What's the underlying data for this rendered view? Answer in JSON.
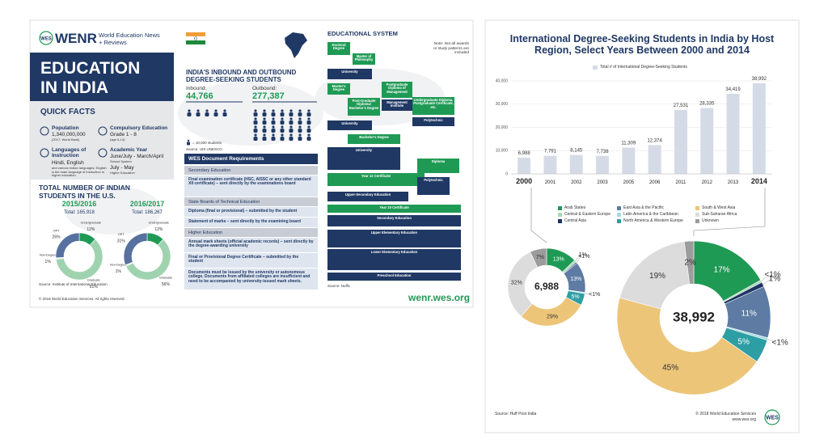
{
  "header": {
    "logo": "WES",
    "brand": "WENR",
    "tagline": "World Education News + Reviews"
  },
  "title_lines": [
    "EDUCATION",
    "IN INDIA"
  ],
  "quick_facts": {
    "heading": "QUICK FACTS",
    "items": [
      {
        "label": "Population",
        "value": "1,340,000,000",
        "note": "(2017, World Bank)"
      },
      {
        "label": "Compulsory Education",
        "value": "Grade 1 - 8",
        "note": "(age 6-14)"
      },
      {
        "label": "Languages of Instruction",
        "value": "Hindi, English",
        "note": "and various Indian languages; English is the main language of instruction in higher education"
      },
      {
        "label": "Academic Year",
        "value": "June/July - March/April",
        "note": "School System",
        "value2": "July - May",
        "note2": "Higher Education"
      }
    ]
  },
  "students_us": {
    "heading": "TOTAL NUMBER OF INDIAN STUDENTS IN THE U.S.",
    "source": "Source: Institute of International Education"
  },
  "inbound_outbound": {
    "title": "INDIA'S INBOUND AND OUTBOUND DEGREE-SEEKING STUDENTS"
  },
  "documents": {
    "heading": "WES Document Requirements",
    "sections": [
      {
        "heading": "Secondary Education",
        "items": [
          "Final examination certificate (HSC, AISSC or any other standard XII certificate) – sent directly by the examinations board"
        ]
      },
      {
        "heading": "State Boards of Technical Education",
        "items": [
          "Diploma (final or provisional) – submitted by the student",
          "Statement of marks – sent directly by the examining board"
        ]
      },
      {
        "heading": "Higher Education",
        "items": [
          "Annual mark sheets (official academic records) – sent directly by the degree-awarding university",
          "Final or Provisional Degree Certificate – submitted by the student",
          "Documents must be issued by the university or autonomous college. Documents from affiliated colleges are insufficient and need to be accompanied by university-issued mark sheets."
        ]
      }
    ]
  },
  "edu_system": {
    "heading": "EDUCATIONAL SYSTEM",
    "note": "Note: Not all awards or study patterns are included",
    "nodes": [
      "Doctoral Degree",
      "Master of Philosophy",
      "University",
      "Master's Degree",
      "Post-Graduate Diploma/ Bachelor's Degree",
      "Postgraduate Diploma of Management",
      "Management Institute",
      "Undergraduate Diploma, Postgraduate Certificate, etc.",
      "University",
      "Polytechnic",
      "Bachelor's Degree",
      "University",
      "Diploma",
      "Year 12 Certificate",
      "Upper-Secondary Education",
      "Polytechnic",
      "Year 10 Certificate",
      "Secondary Education",
      "Upper Elementary Education",
      "Lower Elementary Education",
      "Preschool Education"
    ],
    "source": "Source: Nuffic"
  },
  "footer_left": {
    "copyright": "© 2018 World Education Services. All rights reserved.",
    "url": "wenr.wes.org"
  },
  "right_legend": {
    "categories": [
      "Arab States",
      "Central & Eastern Europe",
      "Central Asia",
      "East Asia & the Pacific",
      "Latin America & the Caribbean",
      "North America & Western Europe",
      "South & West Asia",
      "Sub-Saharan Africa",
      "Unknown"
    ],
    "colors": [
      "#1f9a55",
      "#a9d8b6",
      "#1d3563",
      "#5d7ba3",
      "#a6dbe0",
      "#2d9fa4",
      "#ecc579",
      "#dcdcdc",
      "#9c9c9c"
    ]
  },
  "footer_right": {
    "source": "Source: Huff Post India",
    "copyright": "© 2018 World Education Services",
    "url": "www.wes.org",
    "logo": "WES"
  },
  "chart_data": [
    {
      "type": "bar",
      "title": "International Degree-Seeking Students in India by Host Region, Select Years Between 2000 and 2014",
      "categories": [
        "2000",
        "2001",
        "2002",
        "2003",
        "2005",
        "2006",
        "2011",
        "2012",
        "2013",
        "2014"
      ],
      "series": [
        {
          "name": "Total # of International Degree-Seeking Students",
          "color": "#d5dbe6",
          "values": [
            6988,
            7791,
            8145,
            7738,
            11309,
            12374,
            27531,
            28335,
            34419,
            38992
          ],
          "value_labels": [
            "6,988",
            "7,791",
            "8,145",
            "7,738",
            "11,309",
            "12,374",
            "27,531",
            "28,335",
            "34,419",
            "38,992"
          ]
        }
      ],
      "ylim": [
        0,
        40000
      ],
      "yticks": [
        0,
        {
          "value": 10000,
          "label": "10,000"
        },
        {
          "value": 20000,
          "label": "20,000"
        },
        {
          "value": 30000,
          "label": "30,000"
        },
        {
          "value": 40000,
          "label": "40,000"
        }
      ],
      "grid": true
    },
    {
      "type": "donut",
      "total_label": "6,988",
      "values": [
        13,
        1,
        0.5,
        13,
        0.5,
        5,
        29,
        32,
        7
      ],
      "value_labels": [
        "13%",
        "1%",
        "<1%",
        "13%",
        "<1%",
        "5%",
        "29%",
        "32%",
        "7%"
      ]
    },
    {
      "type": "donut",
      "total_label": "38,992",
      "values": [
        17,
        0.5,
        1,
        11,
        0.5,
        5,
        45,
        19,
        2
      ],
      "value_labels": [
        "17%",
        "<1%",
        "1%",
        "11%",
        "<1%",
        "5%",
        "45%",
        "19%",
        "2%"
      ]
    },
    {
      "type": "donut",
      "title": "2015/2016",
      "subtitle": "Total: 165,918",
      "categories": [
        "Undergraduate",
        "Graduate",
        "Non-Degree",
        "OPT"
      ],
      "colors": [
        "#1f9a55",
        "#9fd3b0",
        "#e6efe9",
        "#5670a0"
      ],
      "values": [
        12,
        61,
        1,
        26
      ],
      "value_labels": [
        "12%",
        "61%",
        "1%",
        "26%"
      ]
    },
    {
      "type": "donut",
      "title": "2016/2017",
      "subtitle": "Total: 186,267",
      "categories": [
        "Undergraduate",
        "Graduate",
        "Non-Degree",
        "OPT"
      ],
      "colors": [
        "#1f9a55",
        "#9fd3b0",
        "#e6efe9",
        "#5670a0"
      ],
      "values": [
        12,
        56,
        1,
        31
      ],
      "value_labels": [
        "12%",
        "56%",
        "1%",
        "31%"
      ]
    },
    {
      "type": "pictograph",
      "series": [
        {
          "name": "Inbound:",
          "values": [
            44766
          ],
          "value_labels": [
            "44,766"
          ]
        },
        {
          "name": "Outbound:",
          "values": [
            277387
          ],
          "value_labels": [
            "277,387"
          ]
        }
      ],
      "unit": 10000,
      "unit_label": "= 10,000 students",
      "source": "Source: UIS UNESCO",
      "color": "#1f3864"
    }
  ]
}
